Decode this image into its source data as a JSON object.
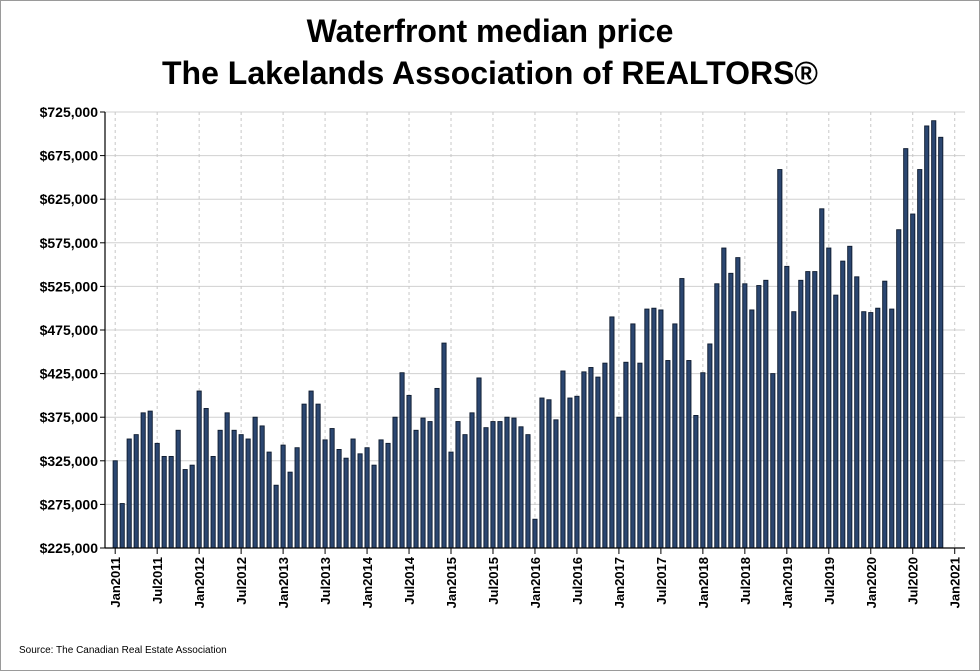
{
  "chart_data": {
    "type": "bar",
    "title": "Waterfront median price",
    "subtitle": "The Lakelands Association of REALTORS®",
    "source": "Source: The Canadian Real Estate Association",
    "xlabel": "",
    "ylabel": "",
    "start": "Jan2011",
    "ylim": [
      225000,
      725000
    ],
    "yticks": [
      225000,
      275000,
      325000,
      375000,
      425000,
      475000,
      525000,
      575000,
      625000,
      675000,
      725000
    ],
    "ytick_labels": [
      "$225,000",
      "$275,000",
      "$325,000",
      "$375,000",
      "$425,000",
      "$475,000",
      "$525,000",
      "$575,000",
      "$625,000",
      "$675,000",
      "$725,000"
    ],
    "xticks": [
      {
        "label": "Jan2011",
        "index": 0
      },
      {
        "label": "Jul2011",
        "index": 6
      },
      {
        "label": "Jan2012",
        "index": 12
      },
      {
        "label": "Jul2012",
        "index": 18
      },
      {
        "label": "Jan2013",
        "index": 24
      },
      {
        "label": "Jul2013",
        "index": 30
      },
      {
        "label": "Jan2014",
        "index": 36
      },
      {
        "label": "Jul2014",
        "index": 42
      },
      {
        "label": "Jan2015",
        "index": 48
      },
      {
        "label": "Jul2015",
        "index": 54
      },
      {
        "label": "Jan2016",
        "index": 60
      },
      {
        "label": "Jul2016",
        "index": 66
      },
      {
        "label": "Jan2017",
        "index": 72
      },
      {
        "label": "Jul2017",
        "index": 78
      },
      {
        "label": "Jan2018",
        "index": 84
      },
      {
        "label": "Jul2018",
        "index": 90
      },
      {
        "label": "Jan2019",
        "index": 96
      },
      {
        "label": "Jul2019",
        "index": 102
      },
      {
        "label": "Jan2020",
        "index": 108
      },
      {
        "label": "Jul2020",
        "index": 114
      },
      {
        "label": "Jan2021",
        "index": 120
      }
    ],
    "values": [
      325000,
      276000,
      350000,
      355000,
      380000,
      382000,
      345000,
      330000,
      330000,
      360000,
      315000,
      320000,
      405000,
      385000,
      330000,
      360000,
      380000,
      360000,
      355000,
      350000,
      375000,
      365000,
      335000,
      297000,
      343000,
      312000,
      340000,
      390000,
      405000,
      390000,
      349000,
      362000,
      338000,
      328000,
      350000,
      333000,
      340000,
      320000,
      349000,
      345000,
      375000,
      426000,
      400000,
      360000,
      374000,
      370000,
      408000,
      460000,
      335000,
      370000,
      355000,
      380000,
      420000,
      363000,
      370000,
      370000,
      375000,
      374000,
      364000,
      355000,
      258000,
      397000,
      395000,
      372000,
      428000,
      397000,
      399000,
      427000,
      432000,
      421000,
      437000,
      490000,
      375000,
      438000,
      482000,
      437000,
      499000,
      500000,
      498000,
      440000,
      482000,
      534000,
      440000,
      377000,
      426000,
      459000,
      528000,
      569000,
      540000,
      558000,
      528000,
      498000,
      526000,
      532000,
      425000,
      659000,
      548000,
      496000,
      532000,
      542000,
      542000,
      614000,
      569000,
      515000,
      554000,
      571000,
      536000,
      496000,
      495000,
      500000,
      531000,
      499000,
      590000,
      683000,
      608000,
      659000,
      709000,
      715000,
      696000
    ]
  }
}
